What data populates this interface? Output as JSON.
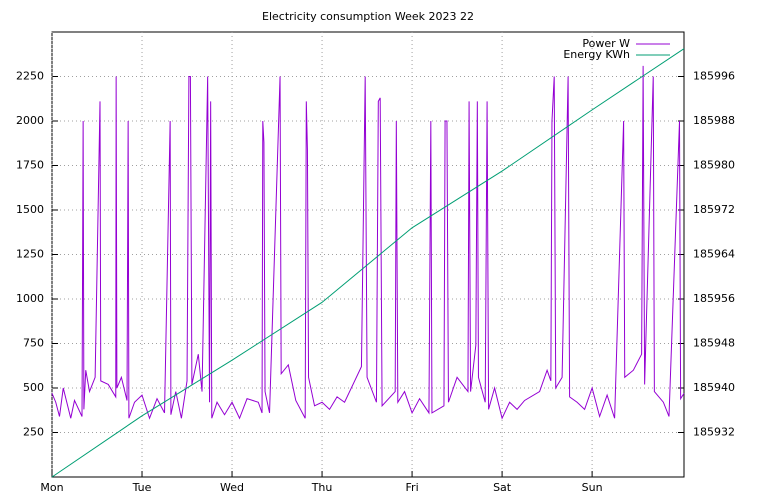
{
  "chart_data": {
    "type": "line",
    "title": "Electricity consumption Week 2023 22",
    "xlim": [
      0,
      168.5
    ],
    "xticks": [
      {
        "value": 0,
        "label": "Mon"
      },
      {
        "value": 24,
        "label": "Tue"
      },
      {
        "value": 48,
        "label": "Wed"
      },
      {
        "value": 72,
        "label": "Thu"
      },
      {
        "value": 96,
        "label": "Fri"
      },
      {
        "value": 120,
        "label": "Sat"
      },
      {
        "value": 144,
        "label": "Sun"
      }
    ],
    "ylim": [
      0,
      2500
    ],
    "yticks": [
      250,
      500,
      750,
      1000,
      1250,
      1500,
      1750,
      2000,
      2250
    ],
    "y2lim": [
      185924,
      186004
    ],
    "y2ticks": [
      185932,
      185940,
      185948,
      185956,
      185964,
      185972,
      185980,
      185988,
      185996
    ],
    "grid": true,
    "legend": "upper right",
    "series": [
      {
        "name": "Power W",
        "color": "#9400d3",
        "x": [
          0,
          1,
          2,
          3,
          5,
          6,
          8,
          8.3,
          8.5,
          9,
          10,
          11.5,
          12.8,
          13,
          15,
          17,
          17.1,
          17.3,
          18.5,
          20,
          20.3,
          20.5,
          22,
          24,
          26,
          28,
          30,
          31.5,
          31.7,
          33,
          34.5,
          36,
          36.5,
          36.9,
          37.3,
          39,
          40,
          41.5,
          42,
          42.3,
          42.6,
          44,
          46,
          48,
          50,
          52,
          55,
          56,
          56.2,
          56.5,
          56.8,
          58,
          60.8,
          61.1,
          63,
          65,
          67.5,
          67.8,
          68.1,
          68.4,
          70,
          72,
          74,
          76,
          78,
          82.5,
          83.5,
          84,
          86.5,
          87,
          87.5,
          88,
          91.5,
          91.8,
          92.2,
          94,
          96,
          98,
          100.5,
          101,
          101.3,
          104.5,
          104.8,
          105.3,
          105.7,
          108,
          110.9,
          111.2,
          111.6,
          113,
          113.4,
          113.7,
          115.5,
          116,
          116.4,
          118,
          120,
          122,
          124,
          126,
          130,
          132,
          133,
          133.3,
          133.9,
          134.3,
          136,
          137.6,
          138,
          140,
          142,
          144,
          146,
          148,
          150,
          152.4,
          152.7,
          155,
          157.2,
          157.6,
          158,
          160.3,
          160.6,
          163,
          164.5,
          167.3,
          167.6,
          168.5
        ],
        "values": [
          470,
          420,
          340,
          500,
          330,
          430,
          340,
          2000,
          380,
          600,
          480,
          560,
          2110,
          540,
          520,
          450,
          2250,
          500,
          560,
          430,
          2000,
          330,
          420,
          460,
          330,
          440,
          360,
          2000,
          350,
          480,
          330,
          540,
          2250,
          2250,
          520,
          690,
          480,
          2250,
          420,
          2110,
          330,
          420,
          350,
          420,
          330,
          440,
          420,
          360,
          2000,
          1880,
          480,
          360,
          2250,
          580,
          630,
          430,
          330,
          2110,
          1840,
          560,
          400,
          420,
          380,
          450,
          420,
          620,
          2250,
          560,
          420,
          2110,
          2130,
          400,
          480,
          2000,
          420,
          480,
          360,
          440,
          360,
          2000,
          360,
          400,
          2000,
          2000,
          420,
          560,
          480,
          2110,
          480,
          740,
          2110,
          560,
          420,
          2110,
          380,
          500,
          330,
          420,
          380,
          430,
          480,
          600,
          540,
          2000,
          2250,
          500,
          560,
          2250,
          450,
          420,
          380,
          500,
          340,
          460,
          330,
          2000,
          560,
          600,
          690,
          2310,
          520,
          2250,
          480,
          420,
          340,
          2000,
          440,
          470
        ]
      },
      {
        "name": "Energy KWh",
        "color": "#009e73",
        "axis": "y2",
        "x": [
          0,
          24,
          48,
          72,
          96,
          120,
          144,
          168.5
        ],
        "values": [
          185924,
          185935,
          185945,
          185955.4,
          185968.8,
          185979,
          185990,
          186001
        ]
      }
    ]
  }
}
